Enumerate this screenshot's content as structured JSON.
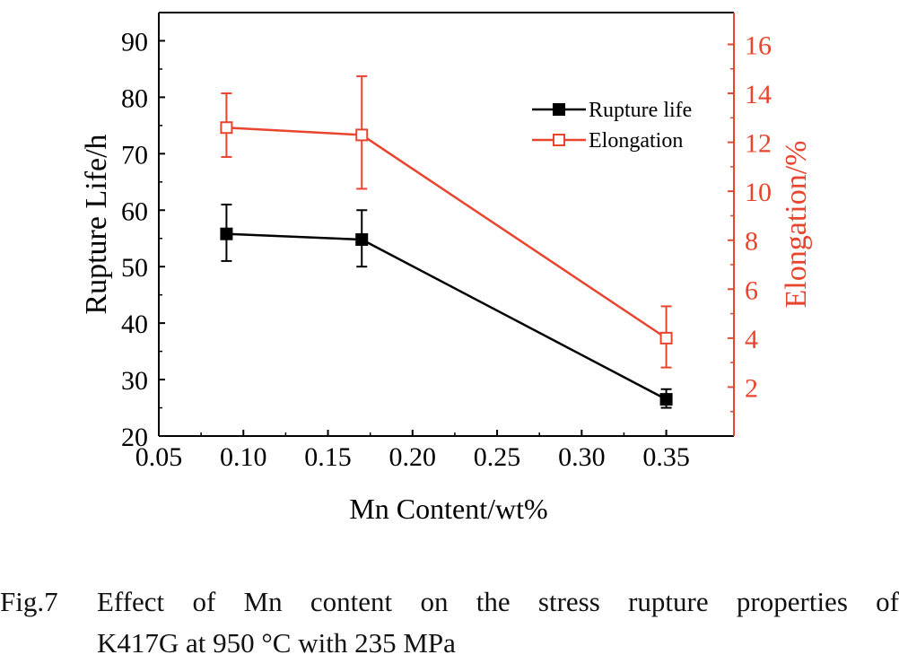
{
  "chart_data": {
    "type": "line",
    "x": [
      0.09,
      0.17,
      0.35
    ],
    "xlabel": "Mn Content/wt%",
    "xlim": [
      0.05,
      0.39
    ],
    "xticks": [
      "0.05",
      "0.10",
      "0.15",
      "0.20",
      "0.25",
      "0.30",
      "0.35"
    ],
    "y_left": {
      "label": "Rupture Life/h",
      "lim": [
        20,
        95
      ],
      "ticks": [
        "20",
        "30",
        "40",
        "50",
        "60",
        "70",
        "80",
        "90"
      ],
      "color": "#000000"
    },
    "y_right": {
      "label": "Elongation/%",
      "lim": [
        0,
        17.3
      ],
      "ticks": [
        "2",
        "4",
        "6",
        "8",
        "10",
        "12",
        "14",
        "16"
      ],
      "color": "#e8442e"
    },
    "series": [
      {
        "name": "Rupture life",
        "axis": "left",
        "color": "#000000",
        "marker": "filled-square",
        "values": [
          55.8,
          54.8,
          26.5
        ],
        "error_low": [
          51,
          50,
          25
        ],
        "error_high": [
          61,
          60,
          28.3
        ]
      },
      {
        "name": "Elongation",
        "axis": "right",
        "color": "#e8442e",
        "marker": "open-square",
        "values": [
          12.6,
          12.3,
          4.0
        ],
        "error_low": [
          11.4,
          10.1,
          2.8
        ],
        "error_high": [
          14.0,
          14.7,
          5.3
        ]
      }
    ],
    "legend_position": "top-right",
    "grid": false
  },
  "caption": {
    "number": "Fig.7",
    "line1": "Effect of Mn content on the stress rupture properties of",
    "line2": "K417G at 950 °C with 235 MPa"
  }
}
